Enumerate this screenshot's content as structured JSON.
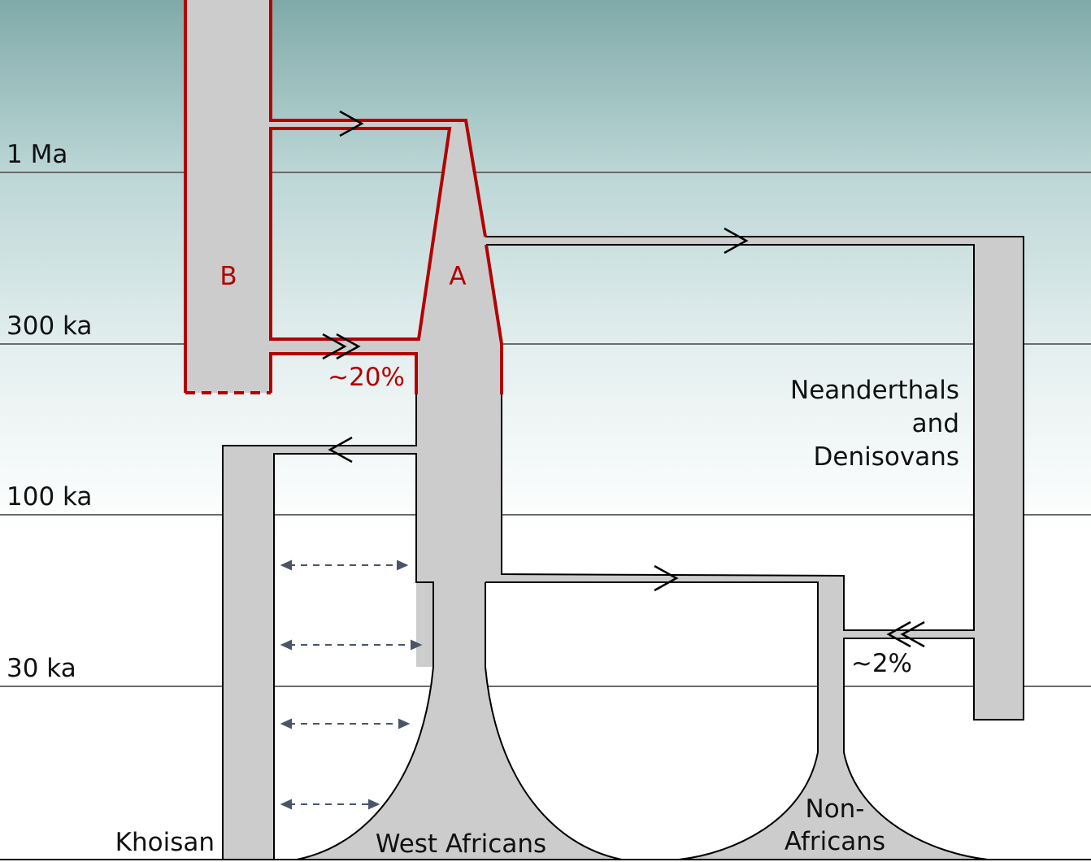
{
  "time_axis": [
    {
      "label": "1 Ma"
    },
    {
      "label": "300 ka"
    },
    {
      "label": "100 ka"
    },
    {
      "label": "30 ka"
    }
  ],
  "populations": {
    "b": "B",
    "a": "A",
    "neanderthals_line1": "Neanderthals",
    "neanderthals_line2": "and",
    "neanderthals_line3": "Denisovans",
    "khoisan": "Khoisan",
    "west_africans": "West Africans",
    "non_africans_line1": "Non-",
    "non_africans_line2": "Africans"
  },
  "admixture": {
    "b_to_a": "~20%",
    "neanderthal_to_nonafrican": "~2%"
  },
  "colors": {
    "highlight": "#b30000",
    "population_fill": "#cccccc",
    "background_top": "#7faaa9",
    "gene_flow_arrows": "#4a5568"
  }
}
